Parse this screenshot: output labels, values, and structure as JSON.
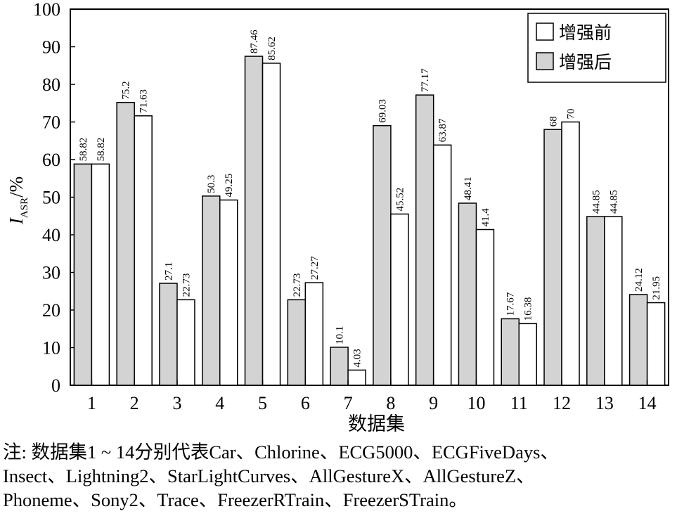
{
  "chart_data": {
    "type": "bar",
    "categories": [
      "1",
      "2",
      "3",
      "4",
      "5",
      "6",
      "7",
      "8",
      "9",
      "10",
      "11",
      "12",
      "13",
      "14"
    ],
    "series": [
      {
        "name": "增强后",
        "color": "#d3d3d3",
        "values": [
          58.82,
          75.2,
          27.1,
          50.3,
          87.46,
          22.73,
          10.1,
          69.03,
          77.17,
          48.41,
          17.67,
          68,
          44.85,
          24.12
        ],
        "labels": [
          "58.82",
          "75.2",
          "27.1",
          "50.3",
          "87.46",
          "22.73",
          "10.1",
          "69.03",
          "77.17",
          "48.41",
          "17.67",
          "68",
          "44.85",
          "24.12"
        ]
      },
      {
        "name": "增强前",
        "color": "#ffffff",
        "values": [
          58.82,
          71.63,
          22.73,
          49.25,
          85.62,
          27.27,
          4.03,
          45.52,
          63.87,
          41.4,
          16.38,
          70,
          44.85,
          21.95
        ],
        "labels": [
          "58.82",
          "71.63",
          "22.73",
          "49.25",
          "85.62",
          "27.27",
          "4.03",
          "45.52",
          "63.87",
          "41.4",
          "16.38",
          "70",
          "44.85",
          "21.95"
        ]
      }
    ],
    "legend_order": [
      "增强前",
      "增强后"
    ],
    "legend_position": "top-right",
    "xlabel": "数据集",
    "ylabel_main": "I",
    "ylabel_sub": "ASR",
    "ylabel_unit": "/%",
    "ylim": [
      0,
      100
    ],
    "yticks": [
      0,
      10,
      20,
      30,
      40,
      50,
      60,
      70,
      80,
      90,
      100
    ],
    "grid": false
  },
  "note": {
    "line1": "注: 数据集1 ~ 14分别代表Car、Chlorine、ECG5000、ECGFiveDays、",
    "line2": "Insect、Lightning2、StarLightCurves、AllGestureX、AllGestureZ、",
    "line3": "Phoneme、Sony2、Trace、FreezerRTrain、FreezerSTrain。"
  }
}
